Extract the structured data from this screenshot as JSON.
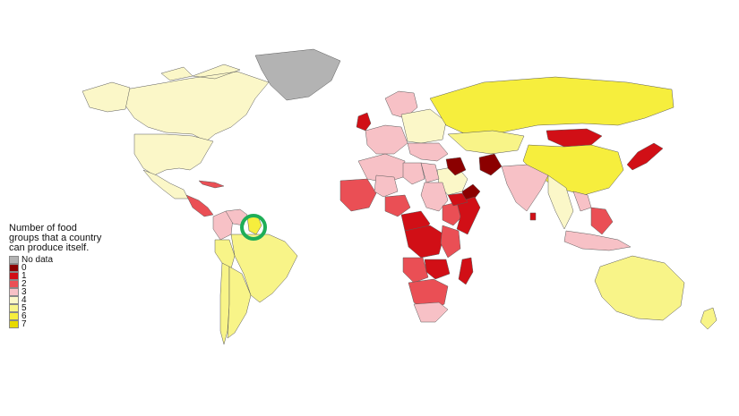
{
  "legend": {
    "title_lines": [
      "Number of food",
      "groups that a country",
      "can produce itself."
    ],
    "items": [
      {
        "label": "No data",
        "color": "#b3b3b3"
      },
      {
        "label": "0",
        "color": "#8b0000"
      },
      {
        "label": "1",
        "color": "#d10f16"
      },
      {
        "label": "2",
        "color": "#ea4f55"
      },
      {
        "label": "3",
        "color": "#f7c1c6"
      },
      {
        "label": "4",
        "color": "#fbf7c8"
      },
      {
        "label": "5",
        "color": "#f8f488"
      },
      {
        "label": "6",
        "color": "#f6ee3d"
      },
      {
        "label": "7",
        "color": "#e8da00"
      }
    ]
  },
  "highlight": {
    "region": "Guyana",
    "ring_color": "#1fae57"
  },
  "regions": [
    {
      "name": "Canada",
      "legend": "4"
    },
    {
      "name": "Alaska",
      "legend": "4"
    },
    {
      "name": "United States",
      "legend": "4"
    },
    {
      "name": "Greenland",
      "legend": "No data"
    },
    {
      "name": "Mexico",
      "legend": "4"
    },
    {
      "name": "Central America",
      "legend": "2"
    },
    {
      "name": "Cuba",
      "legend": "2"
    },
    {
      "name": "Colombia",
      "legend": "3"
    },
    {
      "name": "Venezuela",
      "legend": "3"
    },
    {
      "name": "Guyana",
      "legend": "6"
    },
    {
      "name": "Brazil",
      "legend": "5"
    },
    {
      "name": "Peru",
      "legend": "5"
    },
    {
      "name": "Chile",
      "legend": "5"
    },
    {
      "name": "Argentina",
      "legend": "5"
    },
    {
      "name": "United Kingdom",
      "legend": "1"
    },
    {
      "name": "Scandinavia",
      "legend": "3"
    },
    {
      "name": "Western Europe",
      "legend": "3"
    },
    {
      "name": "Eastern Europe",
      "legend": "4"
    },
    {
      "name": "Russia",
      "legend": "6"
    },
    {
      "name": "Kazakhstan",
      "legend": "5"
    },
    {
      "name": "Mongolia",
      "legend": "1"
    },
    {
      "name": "China",
      "legend": "6"
    },
    {
      "name": "Japan",
      "legend": "1"
    },
    {
      "name": "Middle East",
      "legend": "3"
    },
    {
      "name": "Saudi Arabia",
      "legend": "4"
    },
    {
      "name": "Iraq",
      "legend": "0"
    },
    {
      "name": "Afghanistan",
      "legend": "0"
    },
    {
      "name": "Oman",
      "legend": "0"
    },
    {
      "name": "India",
      "legend": "3"
    },
    {
      "name": "Southeast Asia",
      "legend": "4"
    },
    {
      "name": "Thailand",
      "legend": "3"
    },
    {
      "name": "Sri Lanka",
      "legend": "1"
    },
    {
      "name": "Indonesia",
      "legend": "3"
    },
    {
      "name": "Philippines",
      "legend": "2"
    },
    {
      "name": "North Africa",
      "legend": "3"
    },
    {
      "name": "Libya",
      "legend": "3"
    },
    {
      "name": "Egypt",
      "legend": "3"
    },
    {
      "name": "West Africa",
      "legend": "2"
    },
    {
      "name": "Mali",
      "legend": "3"
    },
    {
      "name": "Nigeria",
      "legend": "2"
    },
    {
      "name": "Sudan",
      "legend": "3"
    },
    {
      "name": "Ethiopia",
      "legend": "2"
    },
    {
      "name": "Somalia",
      "legend": "1"
    },
    {
      "name": "Yemen",
      "legend": "1"
    },
    {
      "name": "Central Africa",
      "legend": "1"
    },
    {
      "name": "DR Congo",
      "legend": "1"
    },
    {
      "name": "Angola",
      "legend": "2"
    },
    {
      "name": "East Africa",
      "legend": "2"
    },
    {
      "name": "Zambia",
      "legend": "1"
    },
    {
      "name": "Southern Africa",
      "legend": "2"
    },
    {
      "name": "South Africa",
      "legend": "3"
    },
    {
      "name": "Madagascar",
      "legend": "1"
    },
    {
      "name": "Australia",
      "legend": "5"
    },
    {
      "name": "New Zealand",
      "legend": "5"
    }
  ]
}
